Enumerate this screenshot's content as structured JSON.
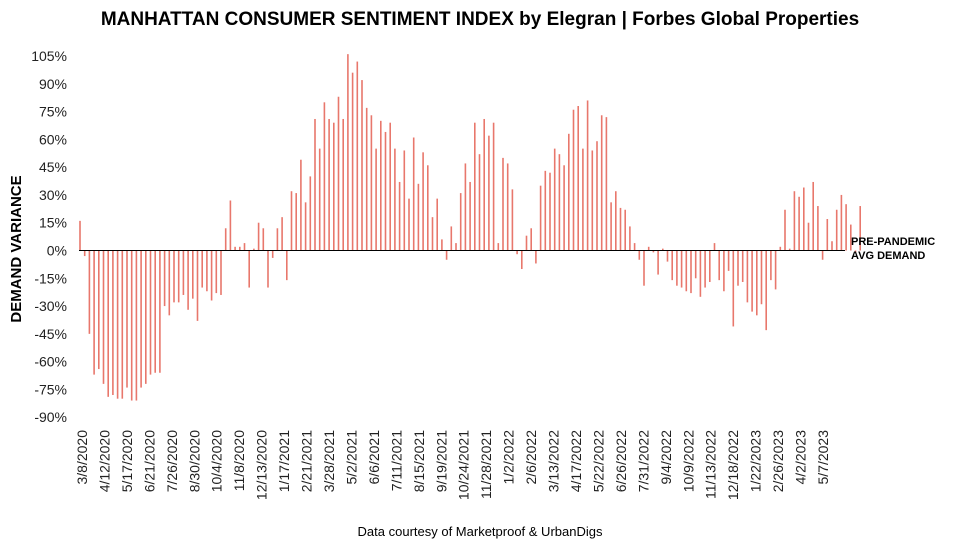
{
  "chart_data": {
    "type": "bar",
    "title": "MANHATTAN CONSUMER SENTIMENT INDEX by Elegran | Forbes Global Properties",
    "xlabel": "",
    "ylabel": "DEMAND VARIANCE",
    "ylim": [
      -90,
      105
    ],
    "yticks": [
      "105%",
      "90%",
      "75%",
      "60%",
      "45%",
      "30%",
      "15%",
      "0%",
      "-15%",
      "-30%",
      "-45%",
      "-60%",
      "-75%",
      "-90%"
    ],
    "ytick_values": [
      105,
      90,
      75,
      60,
      45,
      30,
      15,
      0,
      -15,
      -30,
      -45,
      -60,
      -75,
      -90
    ],
    "tick_labels": [
      "3/8/2020",
      "4/12/2020",
      "5/17/2020",
      "6/21/2020",
      "7/26/2020",
      "8/30/2020",
      "10/4/2020",
      "11/8/2020",
      "12/13/2020",
      "1/17/2021",
      "2/21/2021",
      "3/28/2021",
      "5/2/2021",
      "6/6/2021",
      "7/11/2021",
      "8/15/2021",
      "9/19/2021",
      "10/24/2021",
      "11/28/2021",
      "1/2/2022",
      "2/6/2022",
      "3/13/2022",
      "4/17/2022",
      "5/22/2022",
      "6/26/2022",
      "7/31/2022",
      "9/4/2022",
      "10/9/2022",
      "11/13/2022",
      "12/18/2022",
      "1/22/2023",
      "2/26/2023",
      "4/2/2023",
      "5/7/2023"
    ],
    "annotation": [
      "PRE-PANDEMIC",
      "AVG DEMAND"
    ],
    "bar_color": "#e8776c",
    "grid": false,
    "values": [
      16,
      -3,
      -45,
      -67,
      -64,
      -72,
      -79,
      -78,
      -80,
      -80,
      -74,
      -81,
      -81,
      -74,
      -72,
      -67,
      -66,
      -66,
      -30,
      -35,
      -28,
      -28,
      -24,
      -32,
      -26,
      -38,
      -20,
      -22,
      -27,
      -23,
      -24,
      12,
      27,
      2,
      2,
      4,
      -20,
      1,
      15,
      12,
      -20,
      -4,
      12,
      18,
      -16,
      32,
      31,
      49,
      26,
      40,
      71,
      55,
      80,
      71,
      69,
      83,
      71,
      106,
      96,
      102,
      92,
      77,
      73,
      55,
      70,
      64,
      69,
      55,
      37,
      54,
      28,
      61,
      36,
      53,
      46,
      18,
      28,
      6,
      -5,
      13,
      4,
      31,
      47,
      37,
      69,
      52,
      71,
      62,
      69,
      4,
      50,
      47,
      33,
      -2,
      -10,
      8,
      12,
      -7,
      35,
      43,
      42,
      55,
      52,
      46,
      63,
      76,
      78,
      55,
      81,
      54,
      59,
      73,
      72,
      26,
      32,
      23,
      22,
      13,
      4,
      -5,
      -19,
      2,
      -1,
      -13,
      1,
      -6,
      -16,
      -19,
      -20,
      -22,
      -23,
      -15,
      -25,
      -20,
      -17,
      4,
      -16,
      -22,
      -11,
      -41,
      -19,
      -17,
      -28,
      -33,
      -35,
      -29,
      -43,
      -16,
      -21,
      2,
      22,
      1,
      32,
      29,
      34,
      15,
      37,
      24,
      -5,
      17,
      5,
      22,
      30,
      25,
      14,
      -1,
      24
    ]
  },
  "footer": "Data courtesy of Marketproof & UrbanDigs"
}
